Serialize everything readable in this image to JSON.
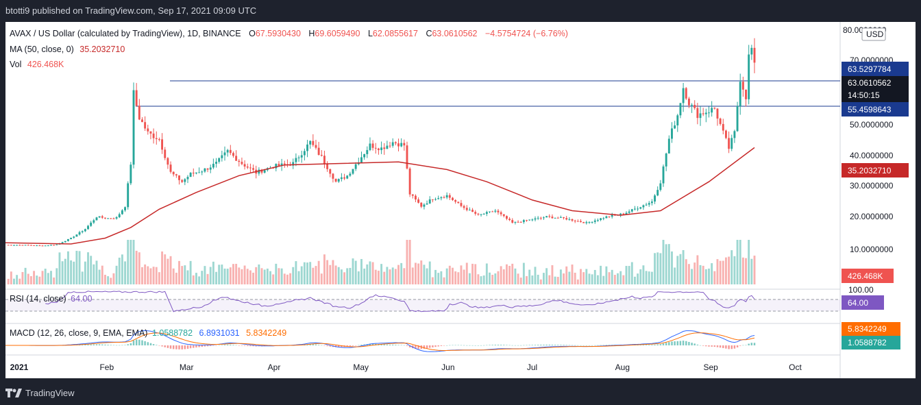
{
  "header": {
    "published": "btotti9 published on TradingView.com, Sep 17, 2021 09:09 UTC"
  },
  "legend": {
    "symbol": "AVAX / US Dollar (calculated by TradingView), 1D, BINANCE",
    "o_label": "O",
    "o": "67.5930430",
    "h_label": "H",
    "h": "69.6059490",
    "l_label": "L",
    "l": "62.0855617",
    "c_label": "C",
    "c": "63.0610562",
    "change": "−4.5754724 (−6.76%)",
    "ma_label": "MA (50, close, 0)",
    "ma_value": "35.2032710",
    "vol_label": "Vol",
    "vol_value": "426.468K",
    "rsi_label": "RSI (14, close)",
    "rsi_value": "64.00",
    "macd_label": "MACD (12, 26, close, 9, EMA, EMA)",
    "macd_hist": "1.0588782",
    "macd_line": "6.8931031",
    "macd_signal": "5.8342249"
  },
  "price_axis": {
    "currency": "USD",
    "ticks": [
      "80.0000000",
      "70.0000000",
      "50.0000000",
      "40.0000000",
      "30.0000000",
      "20.0000000",
      "10.0000000"
    ],
    "badges": {
      "resistance": "63.5297784",
      "price": "63.0610562",
      "countdown": "14:50:15",
      "support": "55.4598643",
      "ma": "35.2032710",
      "volume": "426.468K"
    }
  },
  "rsi_axis": {
    "top": "100.00",
    "badge": "64.00"
  },
  "macd_axis": {
    "signal_badge": "5.8342249",
    "hist_badge": "1.0588782"
  },
  "time_axis": [
    "2021",
    "Feb",
    "Mar",
    "Apr",
    "May",
    "Jun",
    "Jul",
    "Aug",
    "Sep",
    "Oct"
  ],
  "footer": {
    "brand": "TradingView"
  },
  "colors": {
    "up": "#26a69a",
    "down": "#ef5350",
    "ma": "#c62828",
    "rsi": "#7e57c2",
    "macd": "#2962ff",
    "signal": "#ff6d00",
    "hline": "#1a3a8f"
  },
  "chart_data": {
    "type": "candlestick",
    "title": "AVAX / US Dollar (calculated by TradingView), 1D, BINANCE",
    "x_range": [
      "2020-12-28",
      "2021-09-17"
    ],
    "ylim": [
      0,
      80
    ],
    "horizontal_lines": [
      63.5297784,
      55.4598643
    ],
    "price_path": [
      [
        "2020-12-28",
        3.3
      ],
      [
        "2021-01-05",
        3.2
      ],
      [
        "2021-01-10",
        3.0
      ],
      [
        "2021-01-15",
        3.4
      ],
      [
        "2021-01-20",
        5.5
      ],
      [
        "2021-01-25",
        8.5
      ],
      [
        "2021-01-29",
        12.5
      ],
      [
        "2021-02-02",
        12.0
      ],
      [
        "2021-02-05",
        12.2
      ],
      [
        "2021-02-08",
        16.0
      ],
      [
        "2021-02-10",
        30.0
      ],
      [
        "2021-02-11",
        53.0
      ],
      [
        "2021-02-13",
        45.0
      ],
      [
        "2021-02-16",
        40.0
      ],
      [
        "2021-02-20",
        38.0
      ],
      [
        "2021-02-24",
        27.0
      ],
      [
        "2021-02-28",
        24.0
      ],
      [
        "2021-03-03",
        26.5
      ],
      [
        "2021-03-08",
        28.0
      ],
      [
        "2021-03-12",
        30.0
      ],
      [
        "2021-03-16",
        34.0
      ],
      [
        "2021-03-21",
        30.0
      ],
      [
        "2021-03-26",
        27.0
      ],
      [
        "2021-04-01",
        29.0
      ],
      [
        "2021-04-08",
        30.0
      ],
      [
        "2021-04-14",
        37.0
      ],
      [
        "2021-04-18",
        32.0
      ],
      [
        "2021-04-23",
        24.0
      ],
      [
        "2021-04-27",
        26.0
      ],
      [
        "2021-05-01",
        31.0
      ],
      [
        "2021-05-05",
        36.0
      ],
      [
        "2021-05-09",
        35.0
      ],
      [
        "2021-05-13",
        37.0
      ],
      [
        "2021-05-17",
        36.0
      ],
      [
        "2021-05-19",
        20.0
      ],
      [
        "2021-05-23",
        16.0
      ],
      [
        "2021-05-27",
        18.5
      ],
      [
        "2021-06-01",
        19.5
      ],
      [
        "2021-06-06",
        16.0
      ],
      [
        "2021-06-12",
        13.0
      ],
      [
        "2021-06-18",
        14.5
      ],
      [
        "2021-06-24",
        10.5
      ],
      [
        "2021-06-30",
        11.5
      ],
      [
        "2021-07-06",
        12.5
      ],
      [
        "2021-07-12",
        12.0
      ],
      [
        "2021-07-20",
        10.5
      ],
      [
        "2021-07-27",
        12.5
      ],
      [
        "2021-08-02",
        13.5
      ],
      [
        "2021-08-07",
        15.5
      ],
      [
        "2021-08-12",
        17.5
      ],
      [
        "2021-08-15",
        24.0
      ],
      [
        "2021-08-18",
        38.0
      ],
      [
        "2021-08-21",
        46.0
      ],
      [
        "2021-08-23",
        55.0
      ],
      [
        "2021-08-25",
        50.0
      ],
      [
        "2021-08-28",
        46.0
      ],
      [
        "2021-08-31",
        47.0
      ],
      [
        "2021-09-03",
        48.0
      ],
      [
        "2021-09-06",
        40.0
      ],
      [
        "2021-09-08",
        35.0
      ],
      [
        "2021-09-10",
        40.0
      ],
      [
        "2021-09-12",
        58.0
      ],
      [
        "2021-09-14",
        52.0
      ],
      [
        "2021-09-15",
        65.0
      ],
      [
        "2021-09-16",
        67.6
      ],
      [
        "2021-09-17",
        63.06
      ]
    ],
    "ma50_path": [
      [
        "2020-12-28",
        4.0
      ],
      [
        "2021-01-20",
        3.6
      ],
      [
        "2021-02-01",
        5.5
      ],
      [
        "2021-02-10",
        9.0
      ],
      [
        "2021-02-20",
        15.0
      ],
      [
        "2021-03-05",
        20.5
      ],
      [
        "2021-03-20",
        26.0
      ],
      [
        "2021-04-05",
        29.5
      ],
      [
        "2021-04-25",
        30.0
      ],
      [
        "2021-05-15",
        30.5
      ],
      [
        "2021-06-01",
        28.0
      ],
      [
        "2021-06-15",
        24.0
      ],
      [
        "2021-07-01",
        18.0
      ],
      [
        "2021-07-15",
        14.5
      ],
      [
        "2021-08-01",
        13.0
      ],
      [
        "2021-08-15",
        14.5
      ],
      [
        "2021-09-01",
        24.0
      ],
      [
        "2021-09-17",
        35.2
      ]
    ],
    "rsi_range": [
      0,
      100
    ],
    "rsi_last": 64.0,
    "macd_last": {
      "macd": 6.8931031,
      "signal": 5.8342249,
      "histogram": 1.0588782
    },
    "volume_last": "426.468K"
  }
}
